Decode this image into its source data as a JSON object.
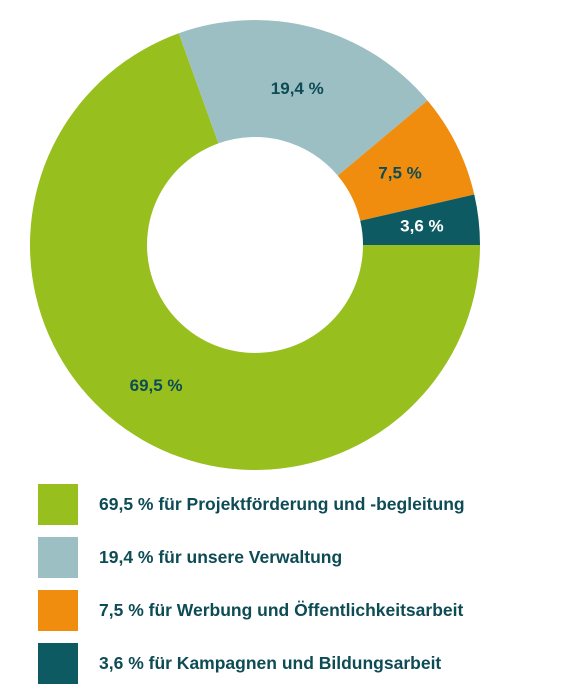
{
  "chart_data": {
    "type": "pie",
    "donut": true,
    "title": "",
    "categories": [
      "für Projektförderung und -begleitung",
      "für unsere Verwaltung",
      "für Werbung und Öffentlichkeitsarbeit",
      "für Kampagnen und Bildungsarbeit"
    ],
    "values": [
      69.5,
      19.4,
      7.5,
      3.6
    ],
    "slice_labels": [
      "69,5 %",
      "19,4 %",
      "7,5 %",
      "3,6 %"
    ],
    "colors": [
      "#97bf1d",
      "#9cbfc4",
      "#f08c0e",
      "#0d5a62"
    ],
    "legend": {
      "placement": "bottom",
      "entries": [
        "69,5 % für Projektförderung und -begleitung",
        "19,4 % für unsere Verwaltung",
        "7,5 % für Werbung und Öffentlichkeitsarbeit",
        "3,6 % für Kampagnen und Bildungsarbeit"
      ]
    }
  }
}
